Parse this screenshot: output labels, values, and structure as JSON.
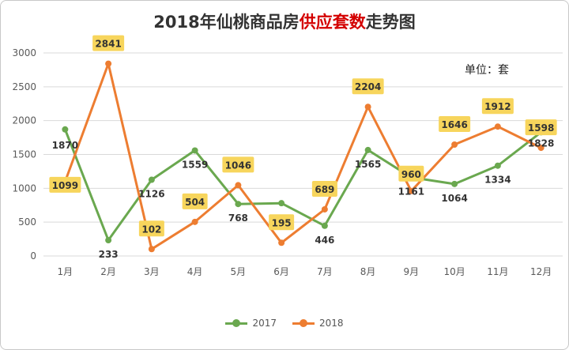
{
  "title": {
    "prefix": "2018年仙桃商品房",
    "highlight": "供应套数",
    "suffix": "走势图"
  },
  "unit_label": "单位：套",
  "colors": {
    "s2017": "#6aa84f",
    "s2018": "#ed7d31",
    "label_bg": "#f7d55c",
    "grid": "#d9d9d9",
    "axis_text": "#595959"
  },
  "chart_data": {
    "type": "line",
    "categories": [
      "1月",
      "2月",
      "3月",
      "4月",
      "5月",
      "6月",
      "7月",
      "8月",
      "9月",
      "10月",
      "11月",
      "12月"
    ],
    "series": [
      {
        "name": "2017",
        "values": [
          1870,
          233,
          1126,
          1559,
          768,
          780,
          446,
          1565,
          1161,
          1064,
          1334,
          1828
        ]
      },
      {
        "name": "2018",
        "values": [
          1099,
          2841,
          102,
          504,
          1046,
          195,
          689,
          2204,
          960,
          1646,
          1912,
          1598
        ]
      }
    ],
    "data_labels": {
      "2017": [
        "1870",
        "233",
        "1126",
        "1559",
        "768",
        "",
        "446",
        "1565",
        "1161",
        "1064",
        "1334",
        "1828"
      ],
      "2018": [
        "1099",
        "2841",
        "102",
        "504",
        "1046",
        "195",
        "689",
        "2204",
        "960",
        "1646",
        "1912",
        "1598"
      ]
    },
    "yticks": [
      0,
      500,
      1000,
      1500,
      2000,
      2500,
      3000
    ],
    "ylim": [
      0,
      3000
    ],
    "grid": true,
    "legend_position": "bottom"
  }
}
